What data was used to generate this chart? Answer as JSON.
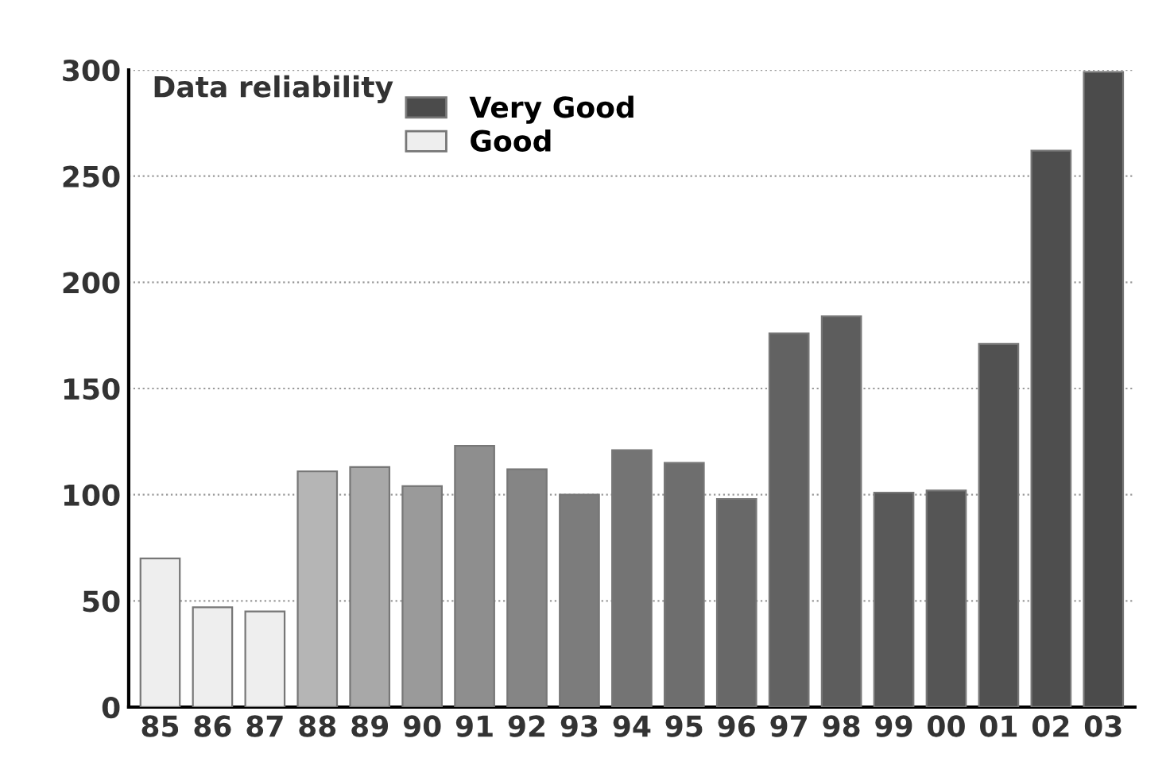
{
  "chart_data": {
    "type": "bar",
    "categories": [
      "85",
      "86",
      "87",
      "88",
      "89",
      "90",
      "91",
      "92",
      "93",
      "94",
      "95",
      "96",
      "97",
      "98",
      "99",
      "00",
      "01",
      "02",
      "03"
    ],
    "legend_title": "Data reliability",
    "series": [
      {
        "name": "Very Good",
        "color": "#4b4b4b",
        "values": [
          null,
          null,
          null,
          111,
          113,
          104,
          123,
          112,
          100,
          121,
          115,
          98,
          176,
          184,
          101,
          102,
          171,
          262,
          299
        ],
        "colors": [
          null,
          null,
          null,
          "#b5b5b5",
          "#a8a8a8",
          "#9a9a9a",
          "#8e8e8e",
          "#858585",
          "#7c7c7c",
          "#747474",
          "#6e6e6e",
          "#686868",
          "#626262",
          "#5d5d5d",
          "#595959",
          "#555555",
          "#515151",
          "#4e4e4e",
          "#4b4b4b"
        ]
      },
      {
        "name": "Good",
        "color": "#eeeeee",
        "values": [
          70,
          47,
          45,
          null,
          null,
          null,
          null,
          null,
          null,
          null,
          null,
          null,
          null,
          null,
          null,
          null,
          null,
          null,
          null
        ],
        "colors": [
          "#eeeeee",
          "#eeeeee",
          "#eeeeee",
          null,
          null,
          null,
          null,
          null,
          null,
          null,
          null,
          null,
          null,
          null,
          null,
          null,
          null,
          null,
          null
        ]
      }
    ],
    "ylim": [
      0,
      300
    ],
    "yticks": [
      0,
      50,
      100,
      150,
      200,
      250,
      300
    ],
    "grid": "y",
    "legend": "top left"
  }
}
